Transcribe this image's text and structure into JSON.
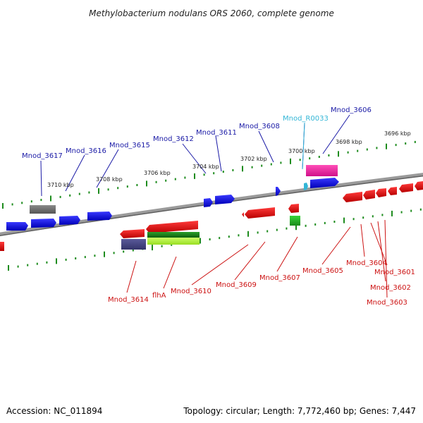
{
  "title": "Methylobacterium nodulans ORS 2060, complete genome",
  "footer": {
    "accession": "Accession: NC_011894",
    "topology": "Topology: circular; Length: 7,772,460 bp; Genes: 7,447"
  },
  "kbp_ticks": [
    "3696 kbp",
    "3698 kbp",
    "3700 kbp",
    "3702 kbp",
    "3704 kbp",
    "3706 kbp",
    "3708 kbp",
    "3710 kbp"
  ],
  "genes_top": [
    "Mnod_3606",
    "Mnod_3608",
    "Mnod_3611",
    "Mnod_3612",
    "Mnod_3615",
    "Mnod_3616",
    "Mnod_3617"
  ],
  "rna_label": "Mnod_R0033",
  "genes_bottom": [
    "Mnod_3601",
    "Mnod_3602",
    "Mnod_3603",
    "Mnod_3604",
    "Mnod_3605",
    "Mnod_3607",
    "Mnod_3609",
    "Mnod_3610",
    "flhA",
    "Mnod_3614"
  ],
  "colors": {
    "forward_gene": "#1414e6",
    "reverse_gene": "#e61414",
    "rna": "#33b6d6",
    "backbone": "#7a7a7a",
    "ticks": "#1e8c1e"
  }
}
